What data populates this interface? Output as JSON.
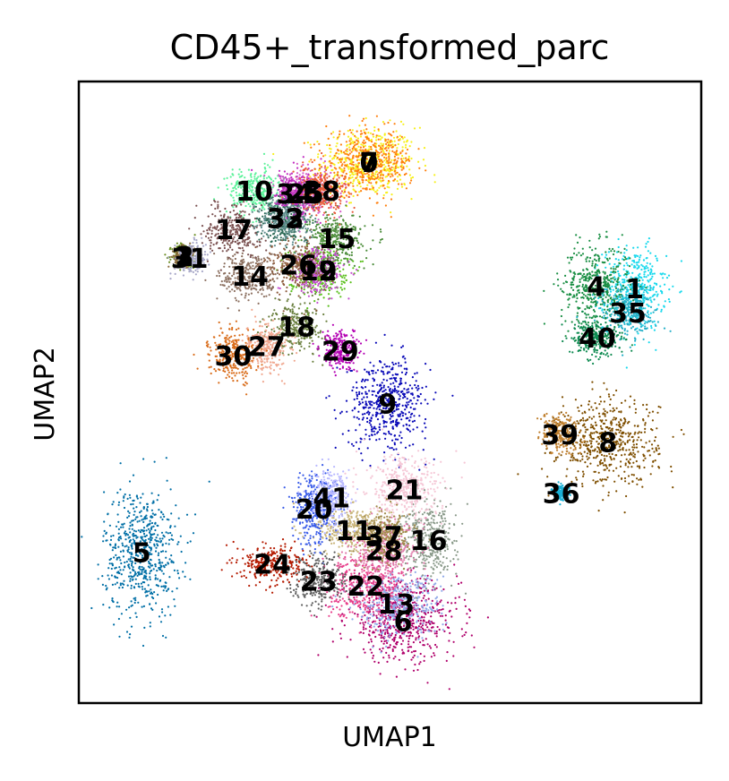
{
  "chart_data": {
    "type": "scatter",
    "title": "CD45+_transformed_parc",
    "xlabel": "UMAP1",
    "ylabel": "UMAP2",
    "xlim": [
      0,
      100
    ],
    "ylim": [
      0,
      100
    ],
    "grid": false,
    "legend": "on data",
    "clusters": [
      {
        "label": "0",
        "x": 46.6,
        "y": 87.0,
        "sx": 3.8,
        "sy": 2.8,
        "color": "#f7f01c"
      },
      {
        "label": "1",
        "x": 89.3,
        "y": 66.7,
        "sx": 2.5,
        "sy": 3.3,
        "color": "#19d9ed"
      },
      {
        "label": "2",
        "x": 17.0,
        "y": 71.9,
        "sx": 1.0,
        "sy": 1.0,
        "color": "#6b8e23"
      },
      {
        "label": "3",
        "x": 17.0,
        "y": 71.9,
        "sx": 0.8,
        "sy": 0.8,
        "color": "#8b6b3d"
      },
      {
        "label": "4",
        "x": 83.1,
        "y": 67.1,
        "sx": 2.8,
        "sy": 3.3,
        "color": "#1a8f44"
      },
      {
        "label": "5",
        "x": 10.1,
        "y": 24.3,
        "sx": 3.0,
        "sy": 5.2,
        "color": "#006fa6"
      },
      {
        "label": "6",
        "x": 52.1,
        "y": 13.2,
        "sx": 4.5,
        "sy": 3.2,
        "color": "#b0006b"
      },
      {
        "label": "7",
        "x": 46.6,
        "y": 87.0,
        "sx": 3.5,
        "sy": 2.5,
        "color": "#ff7f0e"
      },
      {
        "label": "8",
        "x": 85.0,
        "y": 42.0,
        "sx": 4.0,
        "sy": 3.5,
        "color": "#7f4f00"
      },
      {
        "label": "9",
        "x": 49.6,
        "y": 48.2,
        "sx": 3.2,
        "sy": 3.6,
        "color": "#0a0ab8"
      },
      {
        "label": "10",
        "x": 28.2,
        "y": 82.4,
        "sx": 2.2,
        "sy": 1.8,
        "color": "#5cf29a"
      },
      {
        "label": "11",
        "x": 44.2,
        "y": 27.8,
        "sx": 3.0,
        "sy": 2.0,
        "color": "#c9b57a"
      },
      {
        "label": "12",
        "x": 38.5,
        "y": 69.6,
        "sx": 2.4,
        "sy": 2.0,
        "color": "#5abf1c"
      },
      {
        "label": "13",
        "x": 51.0,
        "y": 16.0,
        "sx": 3.5,
        "sy": 2.5,
        "color": "#8fa8e8"
      },
      {
        "label": "14",
        "x": 27.5,
        "y": 68.7,
        "sx": 2.4,
        "sy": 2.0,
        "color": "#8c7060"
      },
      {
        "label": "15",
        "x": 41.5,
        "y": 74.8,
        "sx": 2.2,
        "sy": 2.0,
        "color": "#4b8c3a"
      },
      {
        "label": "16",
        "x": 56.2,
        "y": 26.2,
        "sx": 2.2,
        "sy": 3.0,
        "color": "#8a9a8a"
      },
      {
        "label": "17",
        "x": 24.9,
        "y": 76.2,
        "sx": 2.2,
        "sy": 2.0,
        "color": "#7a5050"
      },
      {
        "label": "18",
        "x": 35.0,
        "y": 60.6,
        "sx": 2.2,
        "sy": 2.0,
        "color": "#6b8040"
      },
      {
        "label": "19",
        "x": 38.5,
        "y": 69.6,
        "sx": 2.0,
        "sy": 1.8,
        "color": "#c44ecf"
      },
      {
        "label": "20",
        "x": 37.8,
        "y": 31.3,
        "sx": 1.8,
        "sy": 3.0,
        "color": "#3a5ce8"
      },
      {
        "label": "21",
        "x": 52.3,
        "y": 34.4,
        "sx": 3.0,
        "sy": 2.5,
        "color": "#f5c7d6"
      },
      {
        "label": "22",
        "x": 46.1,
        "y": 18.9,
        "sx": 3.0,
        "sy": 2.5,
        "color": "#e8408c"
      },
      {
        "label": "23",
        "x": 38.5,
        "y": 19.7,
        "sx": 2.2,
        "sy": 2.0,
        "color": "#5e5e5e"
      },
      {
        "label": "24",
        "x": 31.1,
        "y": 22.4,
        "sx": 2.6,
        "sy": 1.5,
        "color": "#b51a00"
      },
      {
        "label": "25",
        "x": 36.4,
        "y": 82.0,
        "sx": 2.2,
        "sy": 2.0,
        "color": "#d65cc8"
      },
      {
        "label": "26",
        "x": 35.3,
        "y": 70.5,
        "sx": 2.2,
        "sy": 2.0,
        "color": "#8e5c3e"
      },
      {
        "label": "27",
        "x": 30.2,
        "y": 57.4,
        "sx": 1.8,
        "sy": 2.0,
        "color": "#f0a890"
      },
      {
        "label": "28",
        "x": 49.0,
        "y": 24.6,
        "sx": 2.8,
        "sy": 2.2,
        "color": "#e07aaa"
      },
      {
        "label": "29",
        "x": 42.0,
        "y": 56.7,
        "sx": 1.5,
        "sy": 1.5,
        "color": "#b300b3"
      },
      {
        "label": "30",
        "x": 24.8,
        "y": 55.9,
        "sx": 1.8,
        "sy": 2.0,
        "color": "#d96c1a"
      },
      {
        "label": "31",
        "x": 17.8,
        "y": 71.6,
        "sx": 1.2,
        "sy": 1.2,
        "color": "#a8a8c8"
      },
      {
        "label": "32",
        "x": 33.2,
        "y": 78.0,
        "sx": 2.0,
        "sy": 1.8,
        "color": "#2e6b57"
      },
      {
        "label": "33",
        "x": 33.2,
        "y": 78.0,
        "sx": 2.0,
        "sy": 1.8,
        "color": "#5e8c8c"
      },
      {
        "label": "34",
        "x": 34.7,
        "y": 82.0,
        "sx": 2.0,
        "sy": 1.8,
        "color": "#c02cc0"
      },
      {
        "label": "35",
        "x": 88.2,
        "y": 62.8,
        "sx": 2.2,
        "sy": 2.0,
        "color": "#26b0c8"
      },
      {
        "label": "36",
        "x": 77.5,
        "y": 33.8,
        "sx": 0.6,
        "sy": 0.6,
        "color": "#1ab0d6"
      },
      {
        "label": "37",
        "x": 49.0,
        "y": 26.9,
        "sx": 2.2,
        "sy": 2.0,
        "color": "#a08a4a"
      },
      {
        "label": "38",
        "x": 39.0,
        "y": 82.4,
        "sx": 2.2,
        "sy": 1.8,
        "color": "#e85a3a"
      },
      {
        "label": "39",
        "x": 77.3,
        "y": 43.2,
        "sx": 1.5,
        "sy": 1.5,
        "color": "#c08030"
      },
      {
        "label": "40",
        "x": 83.3,
        "y": 58.8,
        "sx": 2.0,
        "sy": 1.5,
        "color": "#0d8a50"
      },
      {
        "label": "41",
        "x": 40.6,
        "y": 33.1,
        "sx": 1.5,
        "sy": 2.0,
        "color": "#b8b8ff"
      }
    ]
  }
}
